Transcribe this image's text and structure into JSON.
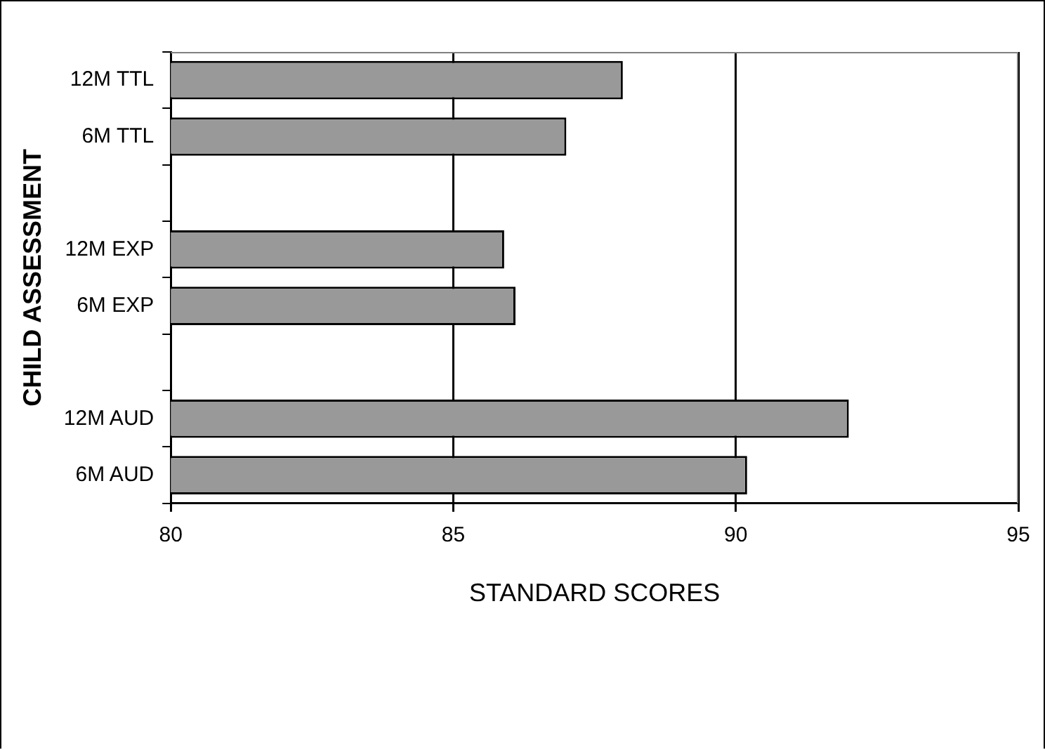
{
  "chart_data": {
    "type": "bar",
    "orientation": "horizontal",
    "xlabel": "STANDARD SCORES",
    "ylabel": "CHILD ASSESSMENT",
    "categories": [
      "12M TTL",
      "6M TTL",
      null,
      "12M EXP",
      "6M EXP",
      null,
      "12M AUD",
      "6M AUD"
    ],
    "values": [
      88.0,
      87.0,
      null,
      85.9,
      86.1,
      null,
      92.0,
      90.2
    ],
    "color": "#999999",
    "xlim": [
      80,
      95
    ],
    "xticks": [
      80,
      85,
      90,
      95
    ],
    "grid": "x",
    "legend": false
  }
}
